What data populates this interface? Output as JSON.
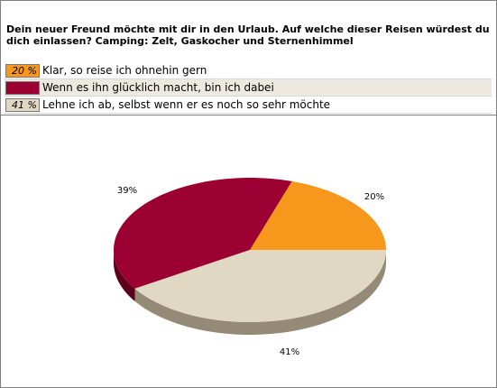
{
  "question": "Dein neuer Freund möchte mit dir in den Urlaub. Auf welche dieser Reisen würdest du dich einlassen? Camping: Zelt, Gaskocher und Sternenhimmel",
  "answers": [
    {
      "pct_label": "20 %",
      "label": "Klar, so reise ich ohnehin gern",
      "color": "#f7981d"
    },
    {
      "pct_label": "39 %",
      "label": "Wenn es ihn glücklich macht, bin ich dabei",
      "color": "#9c0033"
    },
    {
      "pct_label": "41 %",
      "label": "Lehne ich ab, selbst wenn er es noch so sehr möchte",
      "color": "#e0d8c3"
    }
  ],
  "chart_data": {
    "type": "pie",
    "categories": [
      "Klar, so reise ich ohnehin gern",
      "Wenn es ihn glücklich macht, bin ich dabei",
      "Lehne ich ab, selbst wenn er es noch so sehr möchte"
    ],
    "values": [
      20,
      39,
      41
    ],
    "data_labels": [
      "20%",
      "39%",
      "41%"
    ],
    "colors": [
      "#f7981d",
      "#9c0033",
      "#e0d8c3"
    ],
    "side_colors": [
      "#a86410",
      "#5c001e",
      "#958a76"
    ],
    "style": "3d"
  }
}
